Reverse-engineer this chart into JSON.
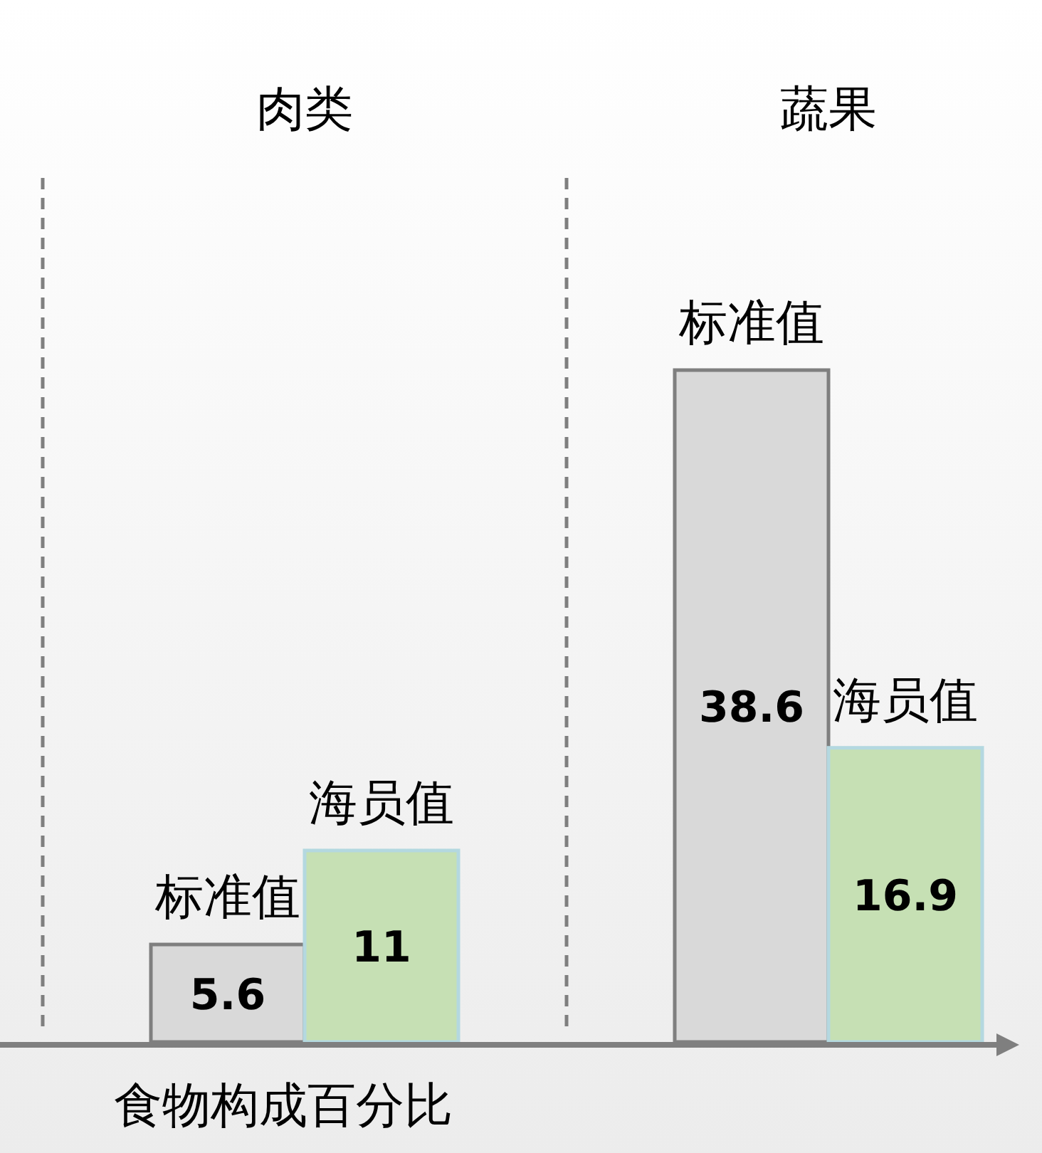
{
  "chart_data": {
    "type": "bar",
    "xlabel": "食物构成百分比",
    "categories": [
      "肉类",
      "蔬果"
    ],
    "series": [
      {
        "name": "标准值",
        "color": "#d9d9d9",
        "values": [
          5.6,
          38.6
        ]
      },
      {
        "name": "海员值",
        "color": "#c6e0b4",
        "values": [
          11,
          16.9
        ]
      }
    ],
    "data_labels": true
  }
}
